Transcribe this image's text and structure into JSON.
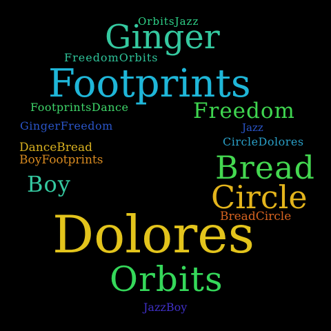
{
  "words": [
    {
      "id": "orbitsjazz",
      "text": "OrbitsJazz",
      "color": "#2fd48a"
    },
    {
      "id": "ginger",
      "text": "Ginger",
      "color": "#35c9a0"
    },
    {
      "id": "freedomorbits",
      "text": "FreedomOrbits",
      "color": "#2fc49a"
    },
    {
      "id": "footprints",
      "text": "Footprints",
      "color": "#1fb6d8"
    },
    {
      "id": "footprintsdance",
      "text": "FootprintsDance",
      "color": "#3fd66a"
    },
    {
      "id": "freedom",
      "text": "Freedom",
      "color": "#3fd650"
    },
    {
      "id": "gingerfreedom",
      "text": "GingerFreedom",
      "color": "#2a55c8"
    },
    {
      "id": "jazz",
      "text": "Jazz",
      "color": "#2a55c8"
    },
    {
      "id": "circledolores",
      "text": "CircleDolores",
      "color": "#2aa0c8"
    },
    {
      "id": "dancebread",
      "text": "DanceBread",
      "color": "#d8b020"
    },
    {
      "id": "bread",
      "text": "Bread",
      "color": "#44d850"
    },
    {
      "id": "boyfootprints",
      "text": "BoyFootprints",
      "color": "#d88a20"
    },
    {
      "id": "boy",
      "text": "Boy",
      "color": "#35c9a0"
    },
    {
      "id": "circle",
      "text": "Circle",
      "color": "#e3b41c"
    },
    {
      "id": "breadcircle",
      "text": "BreadCircle",
      "color": "#d86420"
    },
    {
      "id": "dolores",
      "text": "Dolores",
      "color": "#e3c41c"
    },
    {
      "id": "orbits",
      "text": "Orbits",
      "color": "#35d85a"
    },
    {
      "id": "jazzboy",
      "text": "JazzBoy",
      "color": "#4030c8"
    }
  ]
}
